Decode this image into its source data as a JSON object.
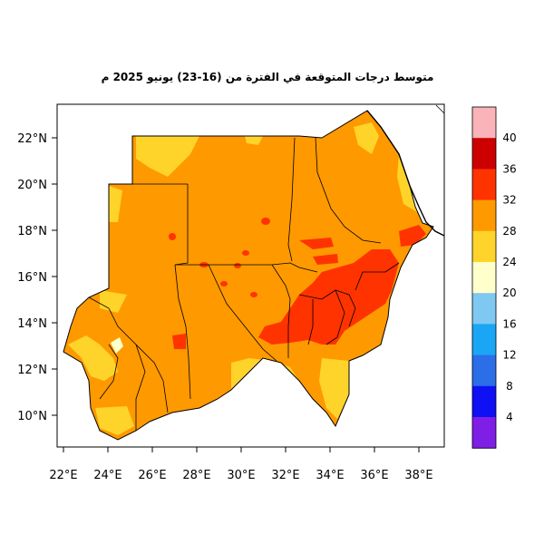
{
  "title": "متوسط درجات المتوقعة في الفترة من (16-23) يونيو 2025 م",
  "lat_ticks": [
    "22°N",
    "20°N",
    "18°N",
    "16°N",
    "14°N",
    "12°N",
    "10°N"
  ],
  "lon_ticks": [
    "22°E",
    "24°E",
    "26°E",
    "28°E",
    "30°E",
    "32°E",
    "34°E",
    "36°E",
    "38°E"
  ],
  "colorbar": {
    "labels": [
      "40",
      "36",
      "32",
      "28",
      "24",
      "20",
      "16",
      "12",
      "8",
      "4"
    ],
    "colors": [
      "#f9b3b9",
      "#cc0000",
      "#ff3300",
      "#ff9900",
      "#ffd42a",
      "#ffffcc",
      "#7ec8f2",
      "#1aa6f5",
      "#2b6ee8",
      "#1010f5",
      "#7f1fe6"
    ]
  },
  "colors": {
    "orange": "#ff9900",
    "yellow": "#ffd42a",
    "red": "#ff3300",
    "lightyellow": "#ffffcc"
  }
}
